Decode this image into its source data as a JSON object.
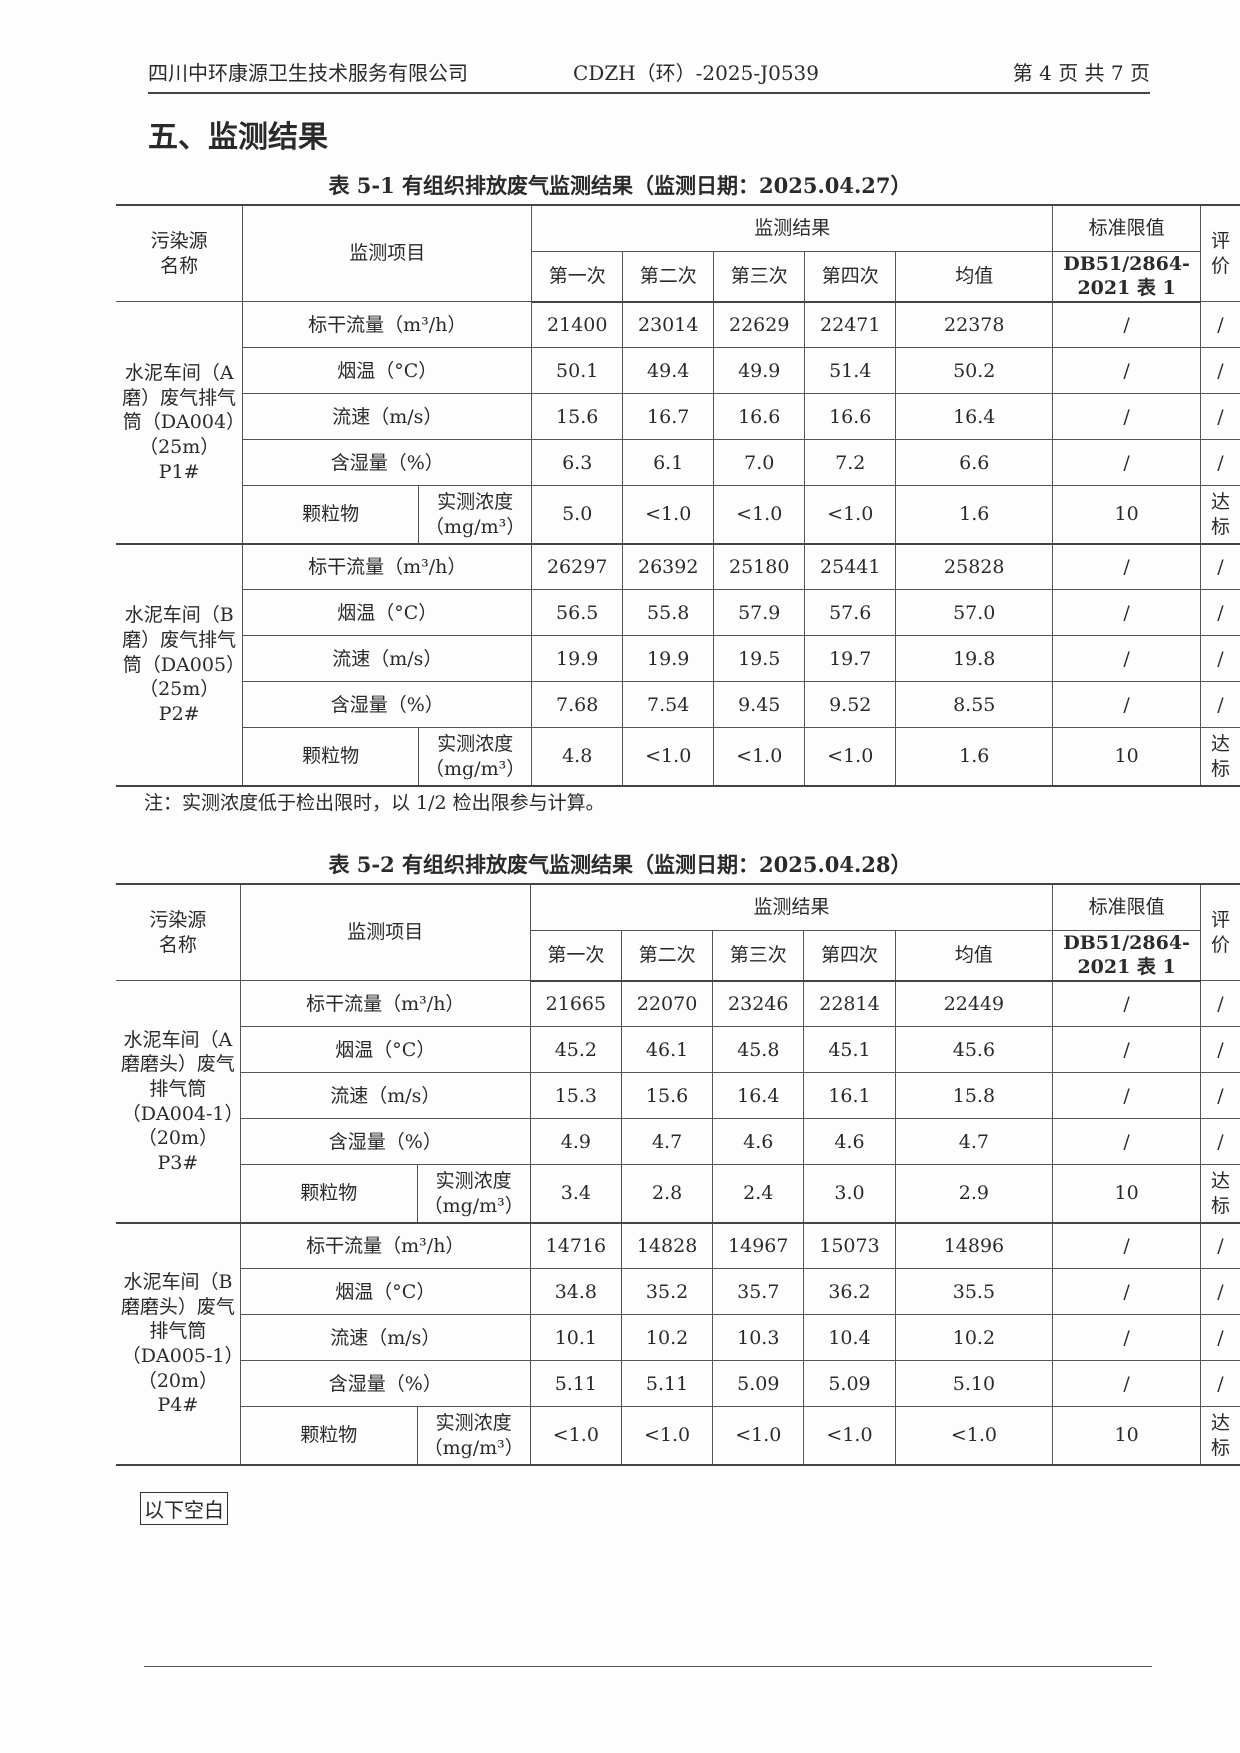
{
  "header": {
    "company": "四川中环康源卫生技术服务有限公司",
    "report_no": "CDZH（环）-2025-J0539",
    "page": "第 4 页 共 7 页"
  },
  "section_title": "五、监测结果",
  "columns": {
    "source": "污染源名称",
    "item": "监测项目",
    "results": "监测结果",
    "runs": [
      "第一次",
      "第二次",
      "第三次",
      "第四次",
      "均值"
    ],
    "standard": "标准限值",
    "standard_ref": "DB51/2864-2021 表 1",
    "eval": "评价"
  },
  "tables": [
    {
      "caption": "表 5-1 有组织排放废气监测结果（监测日期：2025.04.27）",
      "groups": [
        {
          "source": "水泥车间（A磨）废气排气筒（DA004）（25m）P1#",
          "rows": [
            {
              "item": "标干流量（m³/h）",
              "values": [
                "21400",
                "23014",
                "22629",
                "22471",
                "22378"
              ],
              "limit": "/",
              "eval": "/"
            },
            {
              "item": "烟温（°C）",
              "values": [
                "50.1",
                "49.4",
                "49.9",
                "51.4",
                "50.2"
              ],
              "limit": "/",
              "eval": "/"
            },
            {
              "item": "流速（m/s）",
              "values": [
                "15.6",
                "16.7",
                "16.6",
                "16.6",
                "16.4"
              ],
              "limit": "/",
              "eval": "/"
            },
            {
              "item": "含湿量（%）",
              "values": [
                "6.3",
                "6.1",
                "7.0",
                "7.2",
                "6.6"
              ],
              "limit": "/",
              "eval": "/"
            },
            {
              "item": "颗粒物",
              "sub": "实测浓度（mg/m³）",
              "values": [
                "5.0",
                "<1.0",
                "<1.0",
                "<1.0",
                "1.6"
              ],
              "limit": "10",
              "eval": "达标"
            }
          ]
        },
        {
          "source": "水泥车间（B磨）废气排气筒（DA005）（25m）P2#",
          "rows": [
            {
              "item": "标干流量（m³/h）",
              "values": [
                "26297",
                "26392",
                "25180",
                "25441",
                "25828"
              ],
              "limit": "/",
              "eval": "/"
            },
            {
              "item": "烟温（°C）",
              "values": [
                "56.5",
                "55.8",
                "57.9",
                "57.6",
                "57.0"
              ],
              "limit": "/",
              "eval": "/"
            },
            {
              "item": "流速（m/s）",
              "values": [
                "19.9",
                "19.9",
                "19.5",
                "19.7",
                "19.8"
              ],
              "limit": "/",
              "eval": "/"
            },
            {
              "item": "含湿量（%）",
              "values": [
                "7.68",
                "7.54",
                "9.45",
                "9.52",
                "8.55"
              ],
              "limit": "/",
              "eval": "/"
            },
            {
              "item": "颗粒物",
              "sub": "实测浓度（mg/m³）",
              "values": [
                "4.8",
                "<1.0",
                "<1.0",
                "<1.0",
                "1.6"
              ],
              "limit": "10",
              "eval": "达标"
            }
          ]
        }
      ]
    },
    {
      "caption": "表 5-2 有组织排放废气监测结果（监测日期：2025.04.28）",
      "groups": [
        {
          "source": "水泥车间（A磨磨头）废气排气筒（DA004-1）（20m）P3#",
          "rows": [
            {
              "item": "标干流量（m³/h）",
              "values": [
                "21665",
                "22070",
                "23246",
                "22814",
                "22449"
              ],
              "limit": "/",
              "eval": "/"
            },
            {
              "item": "烟温（°C）",
              "values": [
                "45.2",
                "46.1",
                "45.8",
                "45.1",
                "45.6"
              ],
              "limit": "/",
              "eval": "/"
            },
            {
              "item": "流速（m/s）",
              "values": [
                "15.3",
                "15.6",
                "16.4",
                "16.1",
                "15.8"
              ],
              "limit": "/",
              "eval": "/"
            },
            {
              "item": "含湿量（%）",
              "values": [
                "4.9",
                "4.7",
                "4.6",
                "4.6",
                "4.7"
              ],
              "limit": "/",
              "eval": "/"
            },
            {
              "item": "颗粒物",
              "sub": "实测浓度（mg/m³）",
              "values": [
                "3.4",
                "2.8",
                "2.4",
                "3.0",
                "2.9"
              ],
              "limit": "10",
              "eval": "达标"
            }
          ]
        },
        {
          "source": "水泥车间（B磨磨头）废气排气筒（DA005-1）（20m）P4#",
          "rows": [
            {
              "item": "标干流量（m³/h）",
              "values": [
                "14716",
                "14828",
                "14967",
                "15073",
                "14896"
              ],
              "limit": "/",
              "eval": "/"
            },
            {
              "item": "烟温（°C）",
              "values": [
                "34.8",
                "35.2",
                "35.7",
                "36.2",
                "35.5"
              ],
              "limit": "/",
              "eval": "/"
            },
            {
              "item": "流速（m/s）",
              "values": [
                "10.1",
                "10.2",
                "10.3",
                "10.4",
                "10.2"
              ],
              "limit": "/",
              "eval": "/"
            },
            {
              "item": "含湿量（%）",
              "values": [
                "5.11",
                "5.11",
                "5.09",
                "5.09",
                "5.10"
              ],
              "limit": "/",
              "eval": "/"
            },
            {
              "item": "颗粒物",
              "sub": "实测浓度（mg/m³）",
              "values": [
                "<1.0",
                "<1.0",
                "<1.0",
                "<1.0",
                "<1.0"
              ],
              "limit": "10",
              "eval": "达标"
            }
          ]
        }
      ]
    }
  ],
  "note": "注：实测浓度低于检出限时，以 1/2 检出限参与计算。",
  "end_mark": "以下空白"
}
